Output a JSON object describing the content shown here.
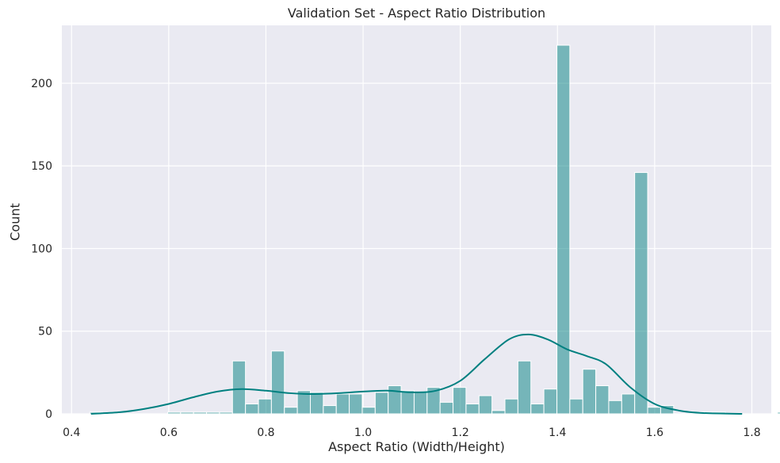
{
  "colors": {
    "background": "#eaeaf2",
    "grid": "#ffffff",
    "bar_fill": "#008080",
    "bar_fill_opacity": 0.5,
    "bar_edge": "#ffffff",
    "kde_line": "#008080"
  },
  "chart_data": {
    "type": "bar",
    "subtype": "histogram_with_kde",
    "title": "Validation Set - Aspect Ratio Distribution",
    "xlabel": "Aspect Ratio (Width/Height)",
    "ylabel": "Count",
    "xlim": [
      0.38,
      1.84
    ],
    "ylim": [
      0,
      235
    ],
    "xticks": [
      0.4,
      0.6,
      0.8,
      1.0,
      1.2,
      1.4,
      1.6,
      1.8
    ],
    "xtick_labels": [
      "0.4",
      "0.6",
      "0.8",
      "1.0",
      "1.2",
      "1.4",
      "1.6",
      "1.8"
    ],
    "yticks": [
      0,
      50,
      100,
      150,
      200
    ],
    "ytick_labels": [
      "0",
      "50",
      "100",
      "150",
      "200"
    ],
    "grid": true,
    "bin_start": 0.4375,
    "bin_width": 0.0267,
    "values": [
      1,
      0,
      0,
      0,
      0,
      0,
      1,
      1,
      1,
      1,
      1,
      32,
      6,
      9,
      38,
      4,
      14,
      13,
      5,
      12,
      12,
      4,
      13,
      17,
      14,
      13,
      16,
      7,
      16,
      6,
      11,
      2,
      9,
      32,
      6,
      15,
      223,
      9,
      27,
      17,
      8,
      12,
      146,
      4,
      5,
      0,
      0,
      1,
      1,
      0,
      0,
      0,
      0,
      1
    ],
    "kde": {
      "x": [
        0.44,
        0.5,
        0.55,
        0.6,
        0.65,
        0.7,
        0.75,
        0.8,
        0.85,
        0.9,
        0.95,
        1.0,
        1.05,
        1.1,
        1.15,
        1.2,
        1.25,
        1.3,
        1.34,
        1.38,
        1.42,
        1.46,
        1.5,
        1.55,
        1.6,
        1.65,
        1.7,
        1.78
      ],
      "y": [
        0,
        1,
        3,
        6,
        10,
        13.5,
        15,
        14,
        12.5,
        12,
        12.5,
        13.5,
        14,
        13,
        14,
        20,
        33,
        45,
        48,
        45,
        39,
        35,
        30,
        16,
        6,
        2,
        0.5,
        0
      ]
    }
  }
}
